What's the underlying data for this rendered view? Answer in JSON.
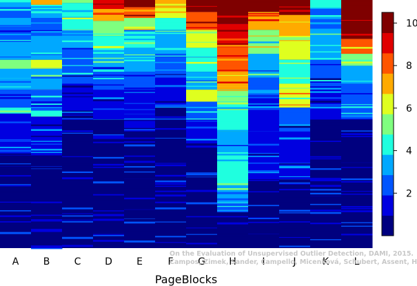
{
  "chart_data": {
    "type": "heatmap",
    "title": "",
    "xlabel": "PageBlocks",
    "ylabel": "",
    "categories": [
      "A",
      "B",
      "C",
      "D",
      "E",
      "F",
      "G",
      "H",
      "I",
      "J",
      "K",
      "L"
    ],
    "colorbar": {
      "range": [
        0,
        10.5
      ],
      "ticks": [
        2,
        4,
        6,
        8,
        10
      ],
      "palette": [
        "#00007F",
        "#0000E0",
        "#0055FF",
        "#00A8FF",
        "#1FFFDF",
        "#7FFF7F",
        "#DFFF1F",
        "#FFAA00",
        "#FF5500",
        "#E00000",
        "#7F0000"
      ]
    },
    "columns": [
      {
        "name": "A",
        "bands": [
          [
            0,
            4,
            4
          ],
          [
            4,
            12,
            3
          ],
          [
            12,
            30,
            2
          ],
          [
            30,
            45,
            3
          ],
          [
            45,
            70,
            2
          ],
          [
            70,
            100,
            3
          ],
          [
            100,
            115,
            5
          ],
          [
            115,
            150,
            3
          ],
          [
            150,
            180,
            2
          ],
          [
            180,
            190,
            4
          ],
          [
            190,
            260,
            1
          ],
          [
            260,
            415,
            0
          ]
        ]
      },
      {
        "name": "B",
        "bands": [
          [
            0,
            8,
            7
          ],
          [
            8,
            15,
            4
          ],
          [
            15,
            30,
            3
          ],
          [
            30,
            60,
            2
          ],
          [
            60,
            100,
            3
          ],
          [
            100,
            115,
            6
          ],
          [
            115,
            150,
            3
          ],
          [
            150,
            185,
            2
          ],
          [
            185,
            195,
            4
          ],
          [
            195,
            260,
            1
          ],
          [
            260,
            415,
            0
          ]
        ]
      },
      {
        "name": "C",
        "bands": [
          [
            0,
            5,
            5
          ],
          [
            5,
            15,
            4
          ],
          [
            15,
            50,
            4
          ],
          [
            50,
            80,
            3
          ],
          [
            80,
            140,
            2
          ],
          [
            140,
            190,
            1
          ],
          [
            190,
            415,
            0
          ]
        ]
      },
      {
        "name": "D",
        "bands": [
          [
            0,
            15,
            9
          ],
          [
            15,
            35,
            7
          ],
          [
            35,
            60,
            5
          ],
          [
            60,
            90,
            4
          ],
          [
            90,
            120,
            3
          ],
          [
            120,
            150,
            2
          ],
          [
            150,
            200,
            1
          ],
          [
            200,
            415,
            0
          ]
        ]
      },
      {
        "name": "E",
        "bands": [
          [
            0,
            12,
            10
          ],
          [
            12,
            30,
            8
          ],
          [
            30,
            50,
            5
          ],
          [
            50,
            80,
            4
          ],
          [
            80,
            120,
            3
          ],
          [
            120,
            150,
            2
          ],
          [
            150,
            220,
            1
          ],
          [
            220,
            415,
            0
          ]
        ]
      },
      {
        "name": "F",
        "bands": [
          [
            0,
            10,
            7
          ],
          [
            10,
            30,
            6
          ],
          [
            30,
            50,
            4
          ],
          [
            50,
            90,
            3
          ],
          [
            90,
            130,
            2
          ],
          [
            130,
            180,
            1
          ],
          [
            180,
            415,
            0
          ]
        ]
      },
      {
        "name": "G",
        "bands": [
          [
            0,
            20,
            10
          ],
          [
            20,
            50,
            8
          ],
          [
            50,
            80,
            6
          ],
          [
            80,
            120,
            4
          ],
          [
            120,
            150,
            3
          ],
          [
            150,
            170,
            6
          ],
          [
            170,
            200,
            2
          ],
          [
            200,
            240,
            1
          ],
          [
            240,
            415,
            0
          ]
        ]
      },
      {
        "name": "H",
        "bands": [
          [
            0,
            40,
            10
          ],
          [
            40,
            80,
            9
          ],
          [
            80,
            120,
            8
          ],
          [
            120,
            150,
            7
          ],
          [
            150,
            170,
            5
          ],
          [
            170,
            220,
            4
          ],
          [
            220,
            260,
            3
          ],
          [
            260,
            310,
            4
          ],
          [
            310,
            340,
            3
          ],
          [
            340,
            355,
            2
          ],
          [
            355,
            415,
            0
          ]
        ]
      },
      {
        "name": "I",
        "bands": [
          [
            0,
            20,
            10
          ],
          [
            20,
            50,
            7
          ],
          [
            50,
            90,
            5
          ],
          [
            90,
            130,
            3
          ],
          [
            130,
            160,
            2
          ],
          [
            160,
            220,
            1
          ],
          [
            220,
            300,
            1
          ],
          [
            300,
            415,
            0
          ]
        ]
      },
      {
        "name": "J",
        "bands": [
          [
            0,
            25,
            10
          ],
          [
            25,
            60,
            7
          ],
          [
            60,
            100,
            6
          ],
          [
            100,
            140,
            4
          ],
          [
            140,
            180,
            6
          ],
          [
            180,
            220,
            2
          ],
          [
            220,
            300,
            1
          ],
          [
            300,
            415,
            0
          ]
        ]
      },
      {
        "name": "K",
        "bands": [
          [
            0,
            15,
            4
          ],
          [
            15,
            50,
            2
          ],
          [
            50,
            100,
            3
          ],
          [
            100,
            150,
            2
          ],
          [
            150,
            200,
            1
          ],
          [
            200,
            415,
            0
          ]
        ]
      },
      {
        "name": "L",
        "bands": [
          [
            0,
            65,
            10
          ],
          [
            65,
            90,
            8
          ],
          [
            90,
            110,
            5
          ],
          [
            110,
            140,
            3
          ],
          [
            140,
            200,
            2
          ],
          [
            200,
            415,
            0
          ]
        ]
      }
    ],
    "citation_line1": "On the Evaluation of Unsupervised Outlier Detection, DAMI, 2015.",
    "citation_line2": "Campos, Zimek, Sander, Campello, Micenková, Schubert, Assent, Houle"
  }
}
